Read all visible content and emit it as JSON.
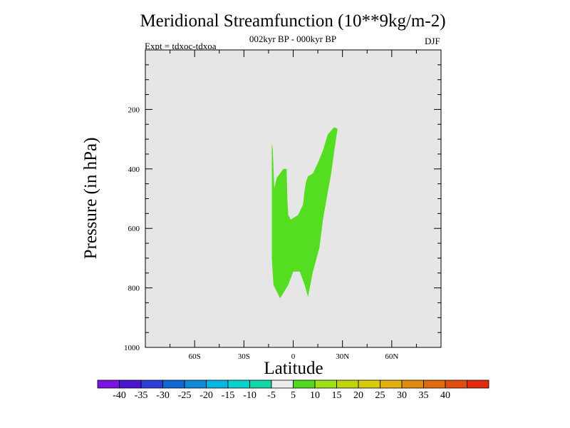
{
  "chart_data": {
    "type": "contour",
    "title": "Meridional Streamfunction (10**9kg/m-2)",
    "subtitle": "002kyr BP - 000kyr BP",
    "experiment": "Expt = tdxoc-tdxoa",
    "season": "DJF",
    "xlabel": "Latitude",
    "ylabel": "Pressure (in hPa)",
    "xlim": [
      -90,
      90
    ],
    "ylim": [
      1000,
      0
    ],
    "x_ticks": [
      {
        "value": -60,
        "label": "60S"
      },
      {
        "value": -30,
        "label": "30S"
      },
      {
        "value": 0,
        "label": "0"
      },
      {
        "value": 30,
        "label": "30N"
      },
      {
        "value": 60,
        "label": "60N"
      }
    ],
    "y_ticks": [
      {
        "value": 200,
        "label": "200"
      },
      {
        "value": 400,
        "label": "400"
      },
      {
        "value": 600,
        "label": "600"
      },
      {
        "value": 800,
        "label": "800"
      },
      {
        "value": 1000,
        "label": "1000"
      }
    ],
    "background_color": "#e6e6e6",
    "regions": [
      {
        "level": "5 to 10",
        "color": "#55dd22",
        "boundary": [
          [
            24.9,
            260
          ],
          [
            27,
            265
          ],
          [
            25,
            340
          ],
          [
            23,
            420
          ],
          [
            20,
            510
          ],
          [
            18,
            575
          ],
          [
            16,
            665
          ],
          [
            12,
            745
          ],
          [
            9,
            830
          ],
          [
            7,
            790
          ],
          [
            5,
            760
          ],
          [
            4,
            745
          ],
          [
            0,
            745
          ],
          [
            -1,
            760
          ],
          [
            -3,
            790
          ],
          [
            -8,
            835
          ],
          [
            -12,
            790
          ],
          [
            -13,
            700
          ],
          [
            -13,
            525
          ],
          [
            -13,
            350
          ],
          [
            -13,
            315
          ],
          [
            -12.5,
            330
          ],
          [
            -11.5,
            465
          ],
          [
            -10,
            430
          ],
          [
            -6,
            400
          ],
          [
            -4,
            400
          ],
          [
            -3.5,
            510
          ],
          [
            -3,
            555
          ],
          [
            -1.5,
            570
          ],
          [
            3,
            555
          ],
          [
            6,
            520
          ],
          [
            7,
            470
          ],
          [
            8,
            440
          ],
          [
            9,
            425
          ],
          [
            12,
            415
          ],
          [
            15,
            380
          ],
          [
            18,
            340
          ],
          [
            21,
            285
          ]
        ]
      }
    ],
    "colorbar": {
      "colors": [
        "#7a14e0",
        "#4a15d2",
        "#2d3ed8",
        "#1266d6",
        "#1088d8",
        "#07b5e2",
        "#0ad1d0",
        "#0fd7a5",
        "#ececec",
        "#54d923",
        "#9ee018",
        "#c2d50c",
        "#d7cb0c",
        "#e0b10f",
        "#e08c0f",
        "#e26b10",
        "#e24c0e",
        "#e22b0d"
      ],
      "labels": [
        "-40",
        "-35",
        "-30",
        "-25",
        "-20",
        "-15",
        "-10",
        "-5",
        "5",
        "10",
        "15",
        "20",
        "25",
        "30",
        "35",
        "40"
      ]
    }
  }
}
